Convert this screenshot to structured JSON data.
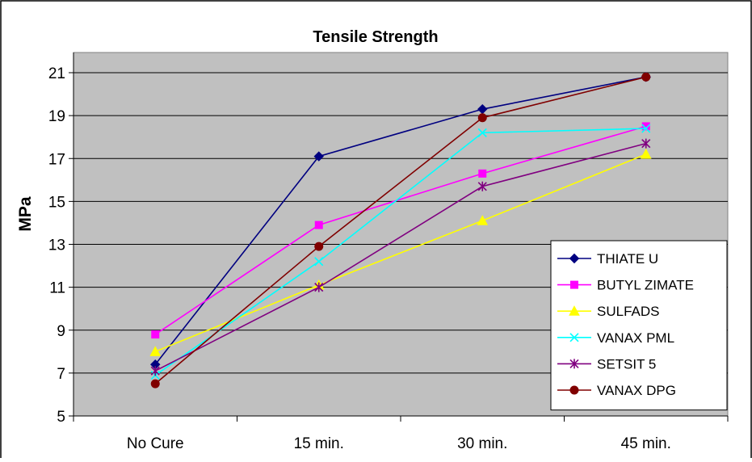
{
  "chart_data": {
    "type": "line",
    "title": "Tensile Strength",
    "xlabel": "",
    "ylabel": "MPa",
    "categories": [
      "No Cure",
      "15 min.",
      "30 min.",
      "45 min."
    ],
    "ylim": [
      5,
      21
    ],
    "yticks": [
      5,
      7,
      9,
      11,
      13,
      15,
      17,
      19,
      21
    ],
    "grid": true,
    "legend_position": "bottom-right",
    "plot_background": "#c0c0c0",
    "series": [
      {
        "name": "THIATE U",
        "color": "#000080",
        "marker": "diamond",
        "values": [
          7.4,
          17.1,
          19.3,
          20.8
        ]
      },
      {
        "name": "BUTYL ZIMATE",
        "color": "#ff00ff",
        "marker": "square",
        "values": [
          8.8,
          13.9,
          16.3,
          18.5
        ]
      },
      {
        "name": "SULFADS",
        "color": "#ffff00",
        "marker": "triangle",
        "values": [
          8.0,
          11.1,
          14.1,
          17.2
        ]
      },
      {
        "name": "VANAX PML",
        "color": "#00ffff",
        "marker": "x",
        "values": [
          6.9,
          12.2,
          18.2,
          18.4
        ]
      },
      {
        "name": "SETSIT 5",
        "color": "#800080",
        "marker": "star",
        "values": [
          7.1,
          11.0,
          15.7,
          17.7
        ]
      },
      {
        "name": "VANAX DPG",
        "color": "#800000",
        "marker": "circle",
        "values": [
          6.5,
          12.9,
          18.9,
          20.8
        ]
      }
    ]
  }
}
